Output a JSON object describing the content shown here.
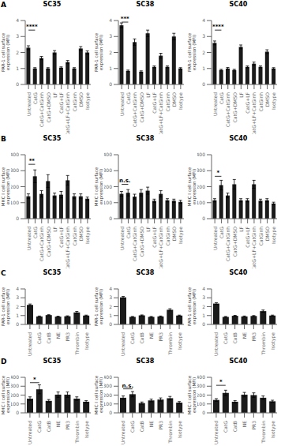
{
  "chart_data": [
    {
      "type": "bar",
      "panel_label": "A",
      "title": "SC35",
      "y_label": "PAR-1 cell surface\nexpression (MFI)",
      "categories": [
        "Untreated",
        "CatG",
        "CatG+CatGinh",
        "CatG+DMSO",
        "LF",
        "CatG+LF",
        "CatG+LF+CatGinh",
        "CatGinh",
        "DMSO",
        "Isotype"
      ],
      "values": [
        2.3,
        1.0,
        1.65,
        1.0,
        2.0,
        1.05,
        1.4,
        1.0,
        2.25,
        2.0
      ],
      "errors": [
        0.12,
        0.05,
        0.1,
        0.05,
        0.12,
        0.05,
        0.1,
        0.05,
        0.12,
        0.1
      ],
      "color": "#1a1a1a",
      "ylim": [
        0,
        4
      ],
      "yticks": [
        0,
        1,
        2,
        3,
        4
      ],
      "annotations": [
        {
          "text": "****",
          "x1": "Untreated",
          "x2": "CatG",
          "y": 3.4
        }
      ]
    },
    {
      "type": "bar",
      "title": "SC38",
      "y_label": "PAR-1 cell surface\nexpression (MFI)",
      "categories": [
        "Untreated",
        "CatG",
        "CatG+CatGinh",
        "CatG+DMSO",
        "LF",
        "CatG+LF",
        "CatG+LF+CatGinh",
        "CatGinh",
        "DMSO",
        "Isotype"
      ],
      "values": [
        3.7,
        0.85,
        2.65,
        0.8,
        3.2,
        1.1,
        1.8,
        1.1,
        3.0,
        1.0
      ],
      "errors": [
        0.15,
        0.05,
        0.2,
        0.05,
        0.2,
        0.06,
        0.15,
        0.06,
        0.2,
        0.05
      ],
      "color": "#1a1a1a",
      "ylim": [
        0,
        4
      ],
      "yticks": [
        0,
        1,
        2,
        3,
        4
      ],
      "annotations": [
        {
          "text": "***",
          "x1": "Untreated",
          "x2": "CatG",
          "y": 3.9
        }
      ]
    },
    {
      "type": "bar",
      "title": "SC40",
      "y_label": "PAR-1 cell surface\nexpression (MFI)",
      "categories": [
        "Untreated",
        "CatG",
        "CatG+CatGinh",
        "CatG+DMSO",
        "LF",
        "CatG+LF",
        "CatG+LF+CatGinh",
        "CatGinh",
        "DMSO",
        "Isotype"
      ],
      "values": [
        2.6,
        0.9,
        1.0,
        0.9,
        2.35,
        1.1,
        1.3,
        1.1,
        2.05,
        1.0
      ],
      "errors": [
        0.12,
        0.05,
        0.06,
        0.05,
        0.12,
        0.06,
        0.1,
        0.06,
        0.12,
        0.05
      ],
      "color": "#1a1a1a",
      "ylim": [
        0,
        4
      ],
      "yticks": [
        0,
        1,
        2,
        3,
        4
      ],
      "annotations": [
        {
          "text": "****",
          "x1": "Untreated",
          "x2": "CatG",
          "y": 3.4
        }
      ]
    },
    {
      "type": "bar",
      "panel_label": "B",
      "title": "SC35",
      "y_label": "MHC I cell surface\nexpression (MFI)",
      "categories": [
        "Untreated",
        "CatG",
        "CatG+CatGinh",
        "CatG+DMSO",
        "LF",
        "CatG+LF",
        "CatG+LF+CatGinh",
        "CatGinh",
        "DMSO",
        "Isotype"
      ],
      "values": [
        140,
        265,
        155,
        235,
        145,
        150,
        240,
        140,
        140,
        125
      ],
      "errors": [
        15,
        40,
        20,
        40,
        15,
        20,
        30,
        15,
        15,
        10
      ],
      "color": "#1a1a1a",
      "ylim": [
        0,
        400
      ],
      "yticks": [
        0,
        100,
        200,
        300,
        400
      ],
      "annotations": [
        {
          "text": "**",
          "x1": "Untreated",
          "x2": "CatG",
          "y": 340
        }
      ]
    },
    {
      "type": "bar",
      "title": "SC38",
      "y_label": "MHC I cell surface\nexpression (MFI)",
      "categories": [
        "Untreated",
        "CatG",
        "CatG+CatGinh",
        "CatG+DMSO",
        "LF",
        "CatG+LF",
        "CatG+LF+CatGinh",
        "CatGinh",
        "DMSO",
        "Isotype"
      ],
      "values": [
        155,
        162,
        138,
        162,
        175,
        112,
        155,
        115,
        112,
        105
      ],
      "errors": [
        15,
        20,
        15,
        20,
        22,
        10,
        20,
        10,
        10,
        10
      ],
      "color": "#1a1a1a",
      "ylim": [
        0,
        400
      ],
      "yticks": [
        0,
        100,
        200,
        300,
        400
      ],
      "annotations": [
        {
          "text": "n.s.",
          "x1": "Untreated",
          "x2": "CatG",
          "y": 215
        }
      ]
    },
    {
      "type": "bar",
      "title": "SC40",
      "y_label": "MHC I cell surface\nexpression (MFI)",
      "categories": [
        "Untreated",
        "CatG",
        "CatG+CatGinh",
        "CatG+DMSO",
        "LF",
        "CatG+LF",
        "CatG+LF+CatGinh",
        "CatGinh",
        "DMSO",
        "Isotype"
      ],
      "values": [
        115,
        210,
        145,
        215,
        115,
        115,
        215,
        112,
        115,
        95
      ],
      "errors": [
        10,
        30,
        15,
        30,
        10,
        10,
        25,
        10,
        10,
        8
      ],
      "color": "#1a1a1a",
      "ylim": [
        0,
        400
      ],
      "yticks": [
        0,
        100,
        200,
        300,
        400
      ],
      "annotations": [
        {
          "text": "*",
          "x1": "Untreated",
          "x2": "CatG",
          "y": 265
        }
      ]
    },
    {
      "type": "bar",
      "panel_label": "C",
      "title": "SC35",
      "y_label": "PAR-1 cell surface\nexpression (MFI)",
      "categories": [
        "Untreated",
        "CatG",
        "CatB",
        "NE",
        "PR3",
        "Thrombin",
        "Isotype"
      ],
      "values": [
        2.2,
        0.9,
        1.05,
        0.88,
        0.92,
        1.35,
        1.0
      ],
      "errors": [
        0.1,
        0.05,
        0.05,
        0.05,
        0.05,
        0.12,
        0.05
      ],
      "color": "#1a1a1a",
      "ylim": [
        0,
        4
      ],
      "yticks": [
        0,
        1,
        2,
        3,
        4
      ]
    },
    {
      "type": "bar",
      "title": "SC38",
      "y_label": "PAR-1 cell surface\nexpression (MFI)",
      "categories": [
        "Untreated",
        "CatG",
        "CatB",
        "NE",
        "PR3",
        "Thrombin",
        "Isotype"
      ],
      "values": [
        3.05,
        0.85,
        1.02,
        0.85,
        0.9,
        1.65,
        1.0
      ],
      "errors": [
        0.1,
        0.05,
        0.05,
        0.05,
        0.05,
        0.12,
        0.05
      ],
      "color": "#1a1a1a",
      "ylim": [
        0,
        4
      ],
      "yticks": [
        0,
        1,
        2,
        3,
        4
      ]
    },
    {
      "type": "bar",
      "title": "SC40",
      "y_label": "PAR-1 cell surface\nexpression (MFI)",
      "categories": [
        "Untreated",
        "CatG",
        "CatB",
        "NE",
        "PR3",
        "Thrombin",
        "Isotype"
      ],
      "values": [
        2.35,
        0.85,
        0.97,
        0.9,
        0.95,
        1.5,
        1.0
      ],
      "errors": [
        0.1,
        0.05,
        0.05,
        0.05,
        0.05,
        0.12,
        0.05
      ],
      "color": "#1a1a1a",
      "ylim": [
        0,
        4
      ],
      "yticks": [
        0,
        1,
        2,
        3,
        4
      ]
    },
    {
      "type": "bar",
      "panel_label": "D",
      "title": "SC35",
      "y_label": "MHC I cell surface\nexpression (MFI)",
      "categories": [
        "Untreated",
        "CatG",
        "CatB",
        "NE",
        "PR3",
        "Thrombin",
        "Isotype"
      ],
      "values": [
        160,
        265,
        135,
        205,
        205,
        160,
        125
      ],
      "errors": [
        20,
        50,
        15,
        30,
        30,
        20,
        12
      ],
      "color": "#1a1a1a",
      "ylim": [
        0,
        400
      ],
      "yticks": [
        0,
        100,
        200,
        300,
        400
      ],
      "annotations": [
        {
          "text": "*",
          "x1": "Untreated",
          "x2": "CatG",
          "y": 340
        }
      ]
    },
    {
      "type": "bar",
      "title": "SC38",
      "y_label": "MHC I cell surface\nexpression (MFI)",
      "categories": [
        "Untreated",
        "CatG",
        "CatB",
        "NE",
        "PR3",
        "Thrombin",
        "Isotype"
      ],
      "values": [
        170,
        210,
        110,
        140,
        150,
        165,
        115
      ],
      "errors": [
        20,
        30,
        12,
        15,
        18,
        20,
        12
      ],
      "color": "#1a1a1a",
      "ylim": [
        0,
        400
      ],
      "yticks": [
        0,
        100,
        200,
        300,
        400
      ],
      "annotations": [
        {
          "text": "n.s.",
          "x1": "Untreated",
          "x2": "CatG",
          "y": 270
        }
      ]
    },
    {
      "type": "bar",
      "title": "SC40",
      "y_label": "MHC I cell surface\nexpression (MFI)",
      "categories": [
        "Untreated",
        "CatG",
        "CatB",
        "NE",
        "PR3",
        "Thrombin",
        "Isotype"
      ],
      "values": [
        145,
        225,
        125,
        205,
        200,
        170,
        130
      ],
      "errors": [
        15,
        30,
        12,
        25,
        25,
        20,
        12
      ],
      "color": "#1a1a1a",
      "ylim": [
        0,
        400
      ],
      "yticks": [
        0,
        100,
        200,
        300,
        400
      ],
      "annotations": [
        {
          "text": "*",
          "x1": "Untreated",
          "x2": "CatG",
          "y": 310
        }
      ]
    }
  ]
}
